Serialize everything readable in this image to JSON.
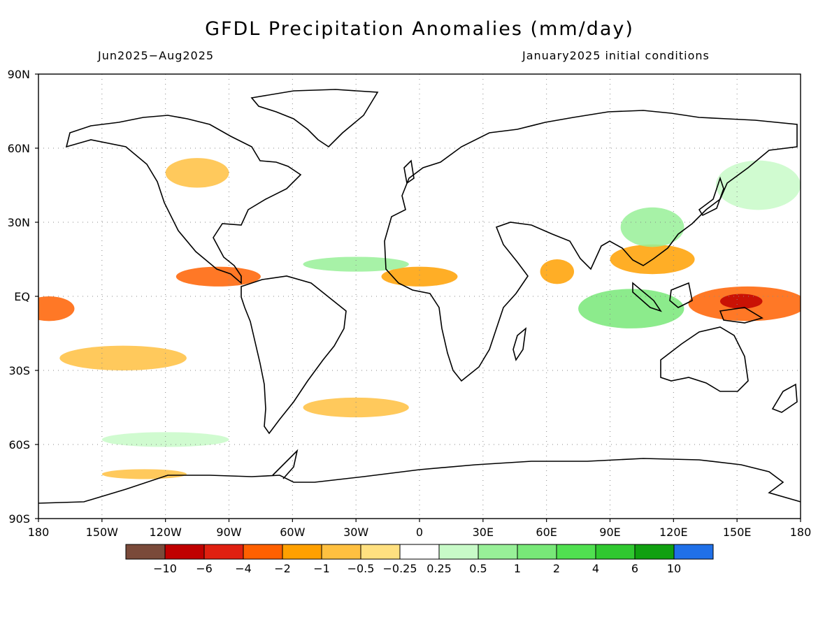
{
  "title": "GFDL Precipitation Anomalies (mm/day)",
  "subtitle_left": "Jun2025−Aug2025",
  "subtitle_right": "January2025 initial conditions",
  "lon_ticks": [
    "180",
    "150W",
    "120W",
    "90W",
    "60W",
    "30W",
    "0",
    "30E",
    "60E",
    "90E",
    "120E",
    "150E",
    "180"
  ],
  "lat_ticks": [
    "90N",
    "60N",
    "30N",
    "EQ",
    "30S",
    "60S",
    "90S"
  ],
  "colorbar": {
    "colors": [
      "#7a4a3a",
      "#c00000",
      "#e02010",
      "#ff6000",
      "#ffa000",
      "#ffc040",
      "#ffe080",
      "#ffffff",
      "#c8fac8",
      "#98f098",
      "#78e878",
      "#50e050",
      "#30c830",
      "#10a010",
      "#2070e8"
    ],
    "labels": [
      "−10",
      "−6",
      "−4",
      "−2",
      "−1",
      "−0.5",
      "−0.25",
      "0.25",
      "0.5",
      "1",
      "2",
      "4",
      "6",
      "10"
    ]
  },
  "anomaly_regions": [
    {
      "name": "west-pacific-dry",
      "lon": 155,
      "lat": -3,
      "rx": 28,
      "ry": 7,
      "level": "-2"
    },
    {
      "name": "west-pacific-core",
      "lon": 152,
      "lat": -2,
      "rx": 10,
      "ry": 3,
      "level": "-6"
    },
    {
      "name": "maritime-continent-wet",
      "lon": 100,
      "lat": -5,
      "rx": 25,
      "ry": 8,
      "level": "1"
    },
    {
      "name": "southeast-asia-dry",
      "lon": 110,
      "lat": 15,
      "rx": 20,
      "ry": 6,
      "level": "-1"
    },
    {
      "name": "east-pacific-itcz-dry",
      "lon": -95,
      "lat": 8,
      "rx": 20,
      "ry": 4,
      "level": "-2"
    },
    {
      "name": "tropical-pacific-east-dry",
      "lon": -175,
      "lat": -5,
      "rx": 12,
      "ry": 5,
      "level": "-2"
    },
    {
      "name": "african-sahel-dry",
      "lon": 0,
      "lat": 8,
      "rx": 18,
      "ry": 4,
      "level": "-1"
    },
    {
      "name": "atlantic-itcz-wet",
      "lon": -30,
      "lat": 13,
      "rx": 25,
      "ry": 3,
      "level": "0.5"
    },
    {
      "name": "south-pacific-dry-band",
      "lon": -140,
      "lat": -25,
      "rx": 30,
      "ry": 5,
      "level": "-0.5"
    },
    {
      "name": "south-atlantic-dry",
      "lon": -30,
      "lat": -45,
      "rx": 25,
      "ry": 4,
      "level": "-0.5"
    },
    {
      "name": "china-wet",
      "lon": 110,
      "lat": 28,
      "rx": 15,
      "ry": 8,
      "level": "0.5"
    },
    {
      "name": "north-pacific-wet",
      "lon": 160,
      "lat": 45,
      "rx": 20,
      "ry": 10,
      "level": "0.25"
    },
    {
      "name": "southern-ocean-wet",
      "lon": -120,
      "lat": -58,
      "rx": 30,
      "ry": 3,
      "level": "0.25"
    },
    {
      "name": "antarctic-dry",
      "lon": -130,
      "lat": -72,
      "rx": 20,
      "ry": 2,
      "level": "-0.5"
    },
    {
      "name": "north-america-dry",
      "lon": -105,
      "lat": 50,
      "rx": 15,
      "ry": 6,
      "level": "-0.5"
    },
    {
      "name": "indian-ocean-dry",
      "lon": 65,
      "lat": 10,
      "rx": 8,
      "ry": 5,
      "level": "-1"
    }
  ]
}
